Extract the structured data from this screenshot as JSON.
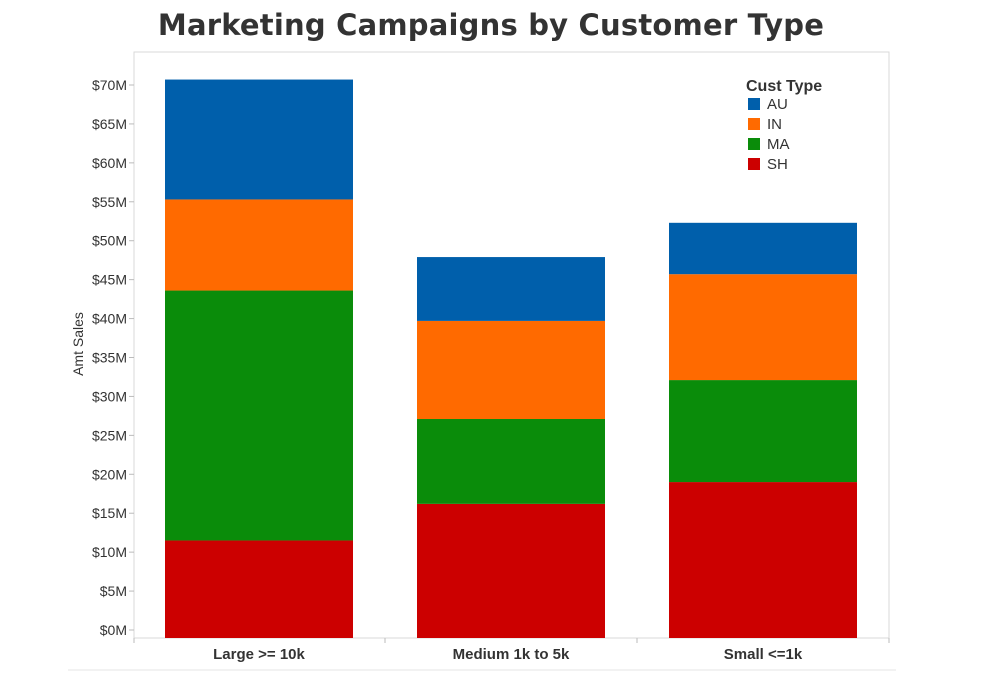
{
  "chart_data": {
    "type": "bar",
    "stacked": true,
    "title": "Marketing Campaigns by Customer Type",
    "xlabel": "",
    "ylabel": "Amt Sales",
    "categories": [
      "Large >= 10k",
      "Medium 1k to 5k",
      "Small <=1k"
    ],
    "ylim": [
      0,
      70
    ],
    "yticks": [
      0,
      5,
      10,
      15,
      20,
      25,
      30,
      35,
      40,
      45,
      50,
      55,
      60,
      65,
      70
    ],
    "ytick_labels": [
      "$0M",
      "$5M",
      "$10M",
      "$15M",
      "$20M",
      "$25M",
      "$30M",
      "$35M",
      "$40M",
      "$45M",
      "$50M",
      "$55M",
      "$60M",
      "$65M",
      "$70M"
    ],
    "legend_title": "Cust Type",
    "legend_position": "top-right",
    "grid": false,
    "series": [
      {
        "name": "SH",
        "color": "#cc0000",
        "values": [
          11.5,
          16.2,
          19.0
        ]
      },
      {
        "name": "MA",
        "color": "#0a8c0a",
        "values": [
          32.1,
          10.9,
          13.1
        ]
      },
      {
        "name": "IN",
        "color": "#ff6a00",
        "values": [
          11.7,
          12.6,
          13.6
        ]
      },
      {
        "name": "AU",
        "color": "#005fab",
        "values": [
          15.4,
          8.2,
          6.6
        ]
      }
    ]
  }
}
